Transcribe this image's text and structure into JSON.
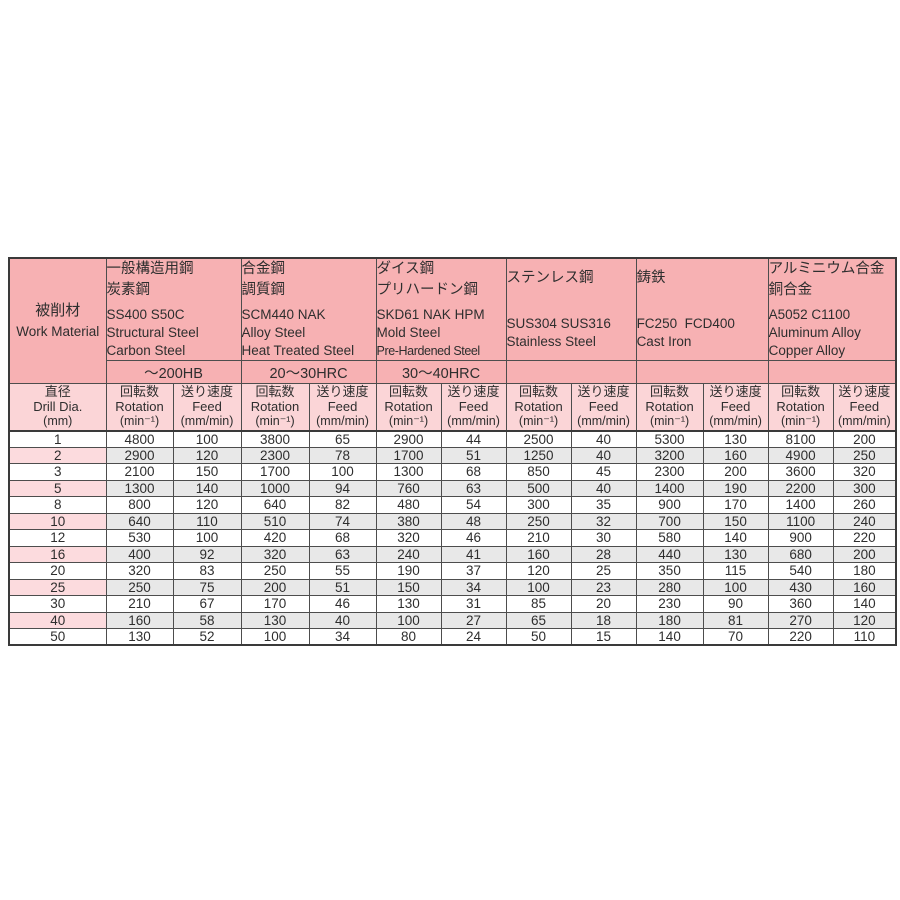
{
  "colors": {
    "header-pink": "#f7b1b3",
    "subheader-pink": "#fbd5d7",
    "row-pink": "#fcdbde",
    "row-gray": "#e8e8e8",
    "border-dark": "#3a3a3a",
    "border-mid": "#4d4d4d",
    "text": "#2e2e2e"
  },
  "table": {
    "work_material_label": {
      "jp": "被削材",
      "en": "Work Material"
    },
    "dia_label": {
      "jp": "直径",
      "en": "Drill Dia.",
      "unit": "(mm)"
    },
    "rotation_label": {
      "jp": "回転数",
      "en": "Rotation",
      "unit": "(min⁻¹)"
    },
    "feed_label": {
      "jp": "送り速度",
      "en": "Feed",
      "unit": "(mm/min)"
    },
    "materials": [
      {
        "jp1": "一般構造用鋼",
        "jp2": "炭素鋼",
        "codes": "SS400 S50C",
        "en1": "Structural Steel",
        "en2": "Carbon Steel",
        "hardness": "～200HB"
      },
      {
        "jp1": "合金鋼",
        "jp2": "調質鋼",
        "codes": "SCM440 NAK",
        "en1": "Alloy Steel",
        "en2": "Heat Treated Steel",
        "hardness": "20～30HRC"
      },
      {
        "jp1": "ダイス鋼",
        "jp2": "プリハードン鋼",
        "codes": "SKD61 NAK HPM",
        "en1": "Mold Steel",
        "en2": "Pre-Hardened Steel",
        "hardness": "30～40HRC"
      },
      {
        "jp1": "ステンレス鋼",
        "jp2": "",
        "codes": "SUS304 SUS316",
        "en1": "Stainless Steel",
        "en2": "",
        "hardness": ""
      },
      {
        "jp1": "鋳鉄",
        "jp2": "",
        "codes": "FC250  FCD400",
        "en1": "Cast Iron",
        "en2": "",
        "hardness": ""
      },
      {
        "jp1": "アルミニウム合金",
        "jp2": "銅合金",
        "codes": "A5052 C1100",
        "en1": "Aluminum Alloy",
        "en2": "Copper Alloy",
        "hardness": ""
      }
    ],
    "rows": [
      {
        "dia": "1",
        "shaded": false,
        "values": [
          "4800",
          "100",
          "3800",
          "65",
          "2900",
          "44",
          "2500",
          "40",
          "5300",
          "130",
          "8100",
          "200"
        ]
      },
      {
        "dia": "2",
        "shaded": true,
        "values": [
          "2900",
          "120",
          "2300",
          "78",
          "1700",
          "51",
          "1250",
          "40",
          "3200",
          "160",
          "4900",
          "250"
        ]
      },
      {
        "dia": "3",
        "shaded": false,
        "values": [
          "2100",
          "150",
          "1700",
          "100",
          "1300",
          "68",
          "850",
          "45",
          "2300",
          "200",
          "3600",
          "320"
        ]
      },
      {
        "dia": "5",
        "shaded": true,
        "values": [
          "1300",
          "140",
          "1000",
          "94",
          "760",
          "63",
          "500",
          "40",
          "1400",
          "190",
          "2200",
          "300"
        ]
      },
      {
        "dia": "8",
        "shaded": false,
        "values": [
          "800",
          "120",
          "640",
          "82",
          "480",
          "54",
          "300",
          "35",
          "900",
          "170",
          "1400",
          "260"
        ]
      },
      {
        "dia": "10",
        "shaded": true,
        "values": [
          "640",
          "110",
          "510",
          "74",
          "380",
          "48",
          "250",
          "32",
          "700",
          "150",
          "1100",
          "240"
        ]
      },
      {
        "dia": "12",
        "shaded": false,
        "values": [
          "530",
          "100",
          "420",
          "68",
          "320",
          "46",
          "210",
          "30",
          "580",
          "140",
          "900",
          "220"
        ]
      },
      {
        "dia": "16",
        "shaded": true,
        "values": [
          "400",
          "92",
          "320",
          "63",
          "240",
          "41",
          "160",
          "28",
          "440",
          "130",
          "680",
          "200"
        ]
      },
      {
        "dia": "20",
        "shaded": false,
        "values": [
          "320",
          "83",
          "250",
          "55",
          "190",
          "37",
          "120",
          "25",
          "350",
          "115",
          "540",
          "180"
        ]
      },
      {
        "dia": "25",
        "shaded": true,
        "values": [
          "250",
          "75",
          "200",
          "51",
          "150",
          "34",
          "100",
          "23",
          "280",
          "100",
          "430",
          "160"
        ]
      },
      {
        "dia": "30",
        "shaded": false,
        "values": [
          "210",
          "67",
          "170",
          "46",
          "130",
          "31",
          "85",
          "20",
          "230",
          "90",
          "360",
          "140"
        ]
      },
      {
        "dia": "40",
        "shaded": true,
        "values": [
          "160",
          "58",
          "130",
          "40",
          "100",
          "27",
          "65",
          "18",
          "180",
          "81",
          "270",
          "120"
        ]
      },
      {
        "dia": "50",
        "shaded": false,
        "values": [
          "130",
          "52",
          "100",
          "34",
          "80",
          "24",
          "50",
          "15",
          "140",
          "70",
          "220",
          "110"
        ]
      }
    ]
  }
}
